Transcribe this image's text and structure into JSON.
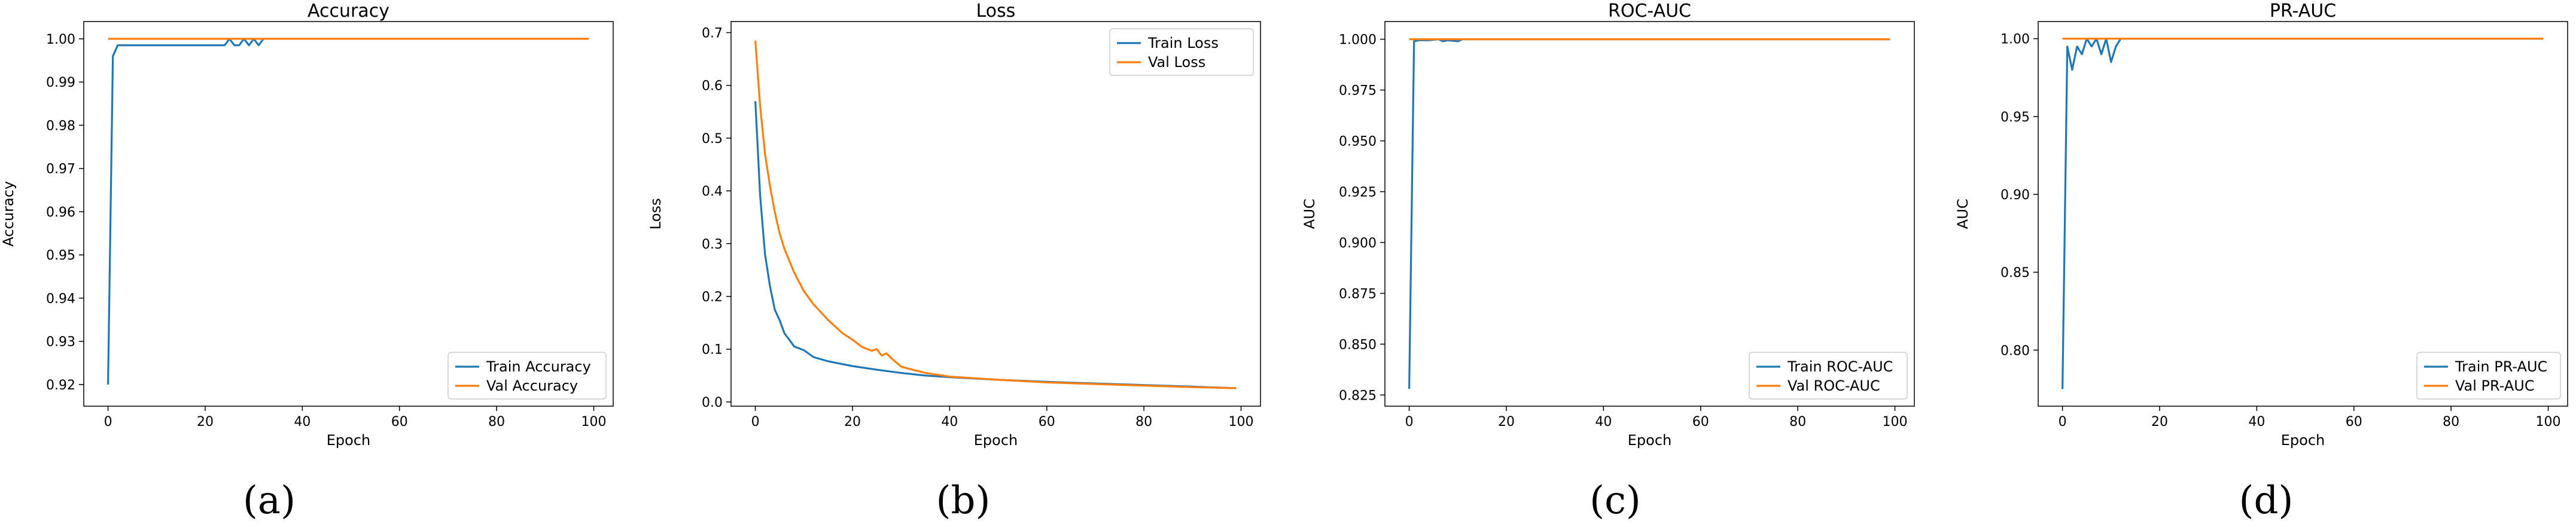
{
  "colors": {
    "train": "#1f77b4",
    "val": "#ff7f0e",
    "axis": "#000000",
    "legend_border": "#cccccc"
  },
  "chart_data": [
    {
      "type": "line",
      "title": "Accuracy",
      "xlabel": "Epoch",
      "ylabel": "Accuracy",
      "caption": "(a)",
      "xlim": [
        -5,
        104
      ],
      "ylim": [
        0.915,
        1.004
      ],
      "xticks": [
        0,
        20,
        40,
        60,
        80,
        100
      ],
      "yticks": [
        0.92,
        0.93,
        0.94,
        0.95,
        0.96,
        0.97,
        0.98,
        0.99,
        1.0
      ],
      "ytick_labels": [
        "0.92",
        "0.93",
        "0.94",
        "0.95",
        "0.96",
        "0.97",
        "0.98",
        "0.99",
        "1.00"
      ],
      "legend_position": "lower right",
      "series": [
        {
          "name": "Train Accuracy",
          "x": [
            0,
            1,
            2,
            3,
            24,
            25,
            26,
            27,
            28,
            29,
            30,
            31,
            32,
            99
          ],
          "y": [
            0.92,
            0.996,
            0.9985,
            0.9985,
            0.9985,
            1.0,
            0.9985,
            0.9985,
            1.0,
            0.9985,
            1.0,
            0.9985,
            1.0,
            1.0
          ]
        },
        {
          "name": "Val Accuracy",
          "x": [
            0,
            99
          ],
          "y": [
            1.0,
            1.0
          ]
        }
      ]
    },
    {
      "type": "line",
      "title": "Loss",
      "xlabel": "Epoch",
      "ylabel": "Loss",
      "caption": "(b)",
      "xlim": [
        -5,
        104
      ],
      "ylim": [
        -0.008,
        0.721
      ],
      "xticks": [
        0,
        20,
        40,
        60,
        80,
        100
      ],
      "yticks": [
        0.0,
        0.1,
        0.2,
        0.3,
        0.4,
        0.5,
        0.6,
        0.7
      ],
      "ytick_labels": [
        "0.0",
        "0.1",
        "0.2",
        "0.3",
        "0.4",
        "0.5",
        "0.6",
        "0.7"
      ],
      "legend_position": "upper right",
      "series": [
        {
          "name": "Train Loss",
          "x": [
            0,
            1,
            2,
            3,
            4,
            5,
            6,
            7,
            8,
            10,
            12,
            15,
            20,
            25,
            30,
            35,
            40,
            50,
            60,
            70,
            80,
            90,
            99
          ],
          "y": [
            0.57,
            0.39,
            0.28,
            0.22,
            0.175,
            0.155,
            0.13,
            0.118,
            0.105,
            0.098,
            0.085,
            0.077,
            0.068,
            0.061,
            0.055,
            0.05,
            0.047,
            0.042,
            0.038,
            0.035,
            0.032,
            0.029,
            0.026
          ]
        },
        {
          "name": "Val Loss",
          "x": [
            0,
            1,
            2,
            3,
            4,
            5,
            6,
            8,
            10,
            12,
            15,
            18,
            20,
            22,
            24,
            25,
            26,
            27,
            28,
            30,
            32,
            35,
            40,
            50,
            60,
            70,
            80,
            90,
            99
          ],
          "y": [
            0.685,
            0.56,
            0.47,
            0.41,
            0.36,
            0.32,
            0.29,
            0.245,
            0.21,
            0.185,
            0.155,
            0.13,
            0.118,
            0.104,
            0.097,
            0.1,
            0.088,
            0.092,
            0.083,
            0.067,
            0.062,
            0.055,
            0.048,
            0.042,
            0.037,
            0.034,
            0.031,
            0.028,
            0.026
          ]
        }
      ]
    },
    {
      "type": "line",
      "title": "ROC-AUC",
      "xlabel": "Epoch",
      "ylabel": "AUC",
      "caption": "(c)",
      "xlim": [
        -5,
        104
      ],
      "ylim": [
        0.8195,
        1.0087
      ],
      "xticks": [
        0,
        20,
        40,
        60,
        80,
        100
      ],
      "yticks": [
        0.825,
        0.85,
        0.875,
        0.9,
        0.925,
        0.95,
        0.975,
        1.0
      ],
      "ytick_labels": [
        "0.825",
        "0.850",
        "0.875",
        "0.900",
        "0.925",
        "0.950",
        "0.975",
        "1.000"
      ],
      "legend_position": "lower right",
      "series": [
        {
          "name": "Train ROC-AUC",
          "x": [
            0,
            1,
            2,
            4,
            6,
            7,
            8,
            10,
            11,
            12,
            99
          ],
          "y": [
            0.828,
            0.999,
            0.9995,
            0.9995,
            1.0,
            0.999,
            0.9995,
            0.999,
            1.0,
            1.0,
            1.0
          ]
        },
        {
          "name": "Val ROC-AUC",
          "x": [
            0,
            99
          ],
          "y": [
            1.0,
            1.0
          ]
        }
      ]
    },
    {
      "type": "line",
      "title": "PR-AUC",
      "xlabel": "Epoch",
      "ylabel": "AUC",
      "caption": "(d)",
      "xlim": [
        -5,
        104
      ],
      "ylim": [
        0.764,
        1.011
      ],
      "xticks": [
        0,
        20,
        40,
        60,
        80,
        100
      ],
      "yticks": [
        0.8,
        0.85,
        0.9,
        0.95,
        1.0
      ],
      "ytick_labels": [
        "0.80",
        "0.85",
        "0.90",
        "0.95",
        "1.00"
      ],
      "legend_position": "lower right",
      "series": [
        {
          "name": "Train PR-AUC",
          "x": [
            0,
            1,
            2,
            3,
            4,
            5,
            6,
            7,
            8,
            9,
            10,
            11,
            12,
            99
          ],
          "y": [
            0.775,
            0.995,
            0.98,
            0.995,
            0.99,
            1.0,
            0.995,
            1.0,
            0.99,
            1.0,
            0.985,
            0.995,
            1.0,
            1.0
          ]
        },
        {
          "name": "Val PR-AUC",
          "x": [
            0,
            99
          ],
          "y": [
            1.0,
            1.0
          ]
        }
      ]
    }
  ]
}
